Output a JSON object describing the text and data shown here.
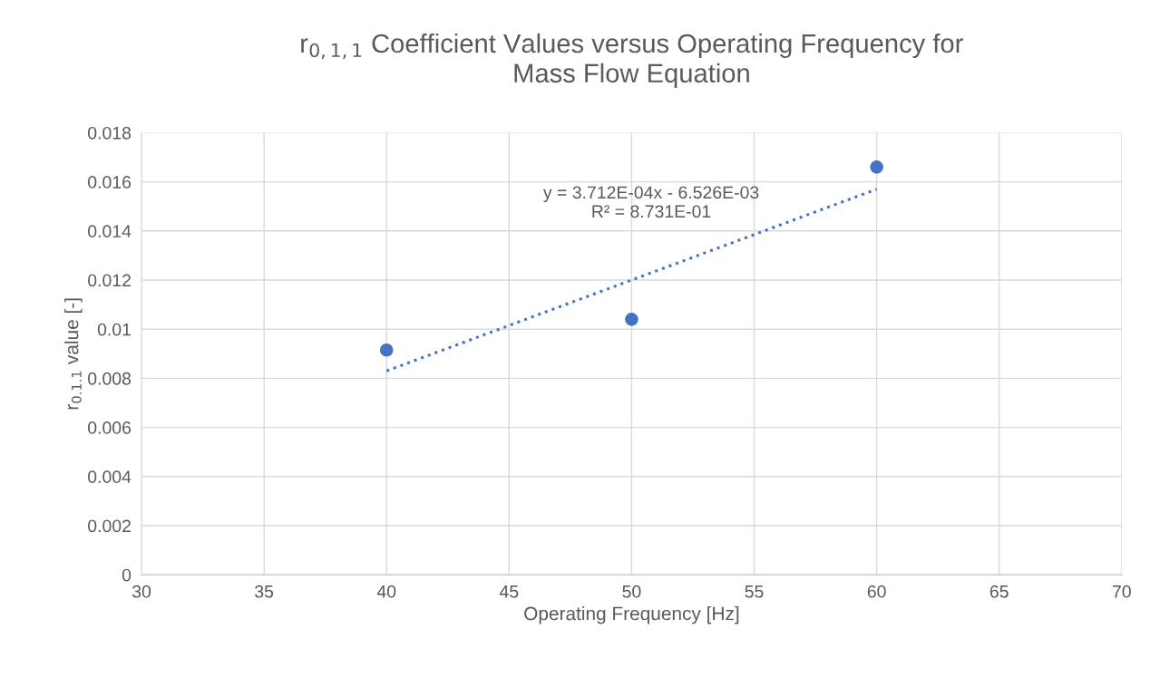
{
  "chart_data": {
    "type": "scatter",
    "title": "r$_{0,1,1}$ Coefficient Values versus Operating Frequency for\nMass Flow Equation",
    "xlabel": "Operating Frequency [Hz]",
    "ylabel": "r$_{0.1.1}$ value [-]",
    "series": [
      {
        "color": "#4472c4",
        "x": [
          40,
          50,
          60
        ],
        "values": [
          0.00915,
          0.0104,
          0.0166
        ],
        "marker": "circle"
      },
      {
        "type": "line",
        "color": "#4472c4",
        "x": [
          40,
          60
        ],
        "values": [
          0.0083,
          0.0157
        ],
        "line_style": "dotted"
      }
    ],
    "annotations": [
      "y = 3.712E-04x - 6.526E-03\nR² = 8.731E-01"
    ],
    "xlim": [
      30,
      70
    ],
    "xticks": [
      30,
      35,
      40,
      45,
      50,
      55,
      60,
      65,
      70
    ],
    "ylim": [
      0,
      0.018
    ],
    "yticks": [
      0,
      0.002,
      0.004,
      0.006,
      0.008,
      0.01,
      0.012,
      0.014,
      0.016,
      0.018
    ],
    "grid": true
  }
}
